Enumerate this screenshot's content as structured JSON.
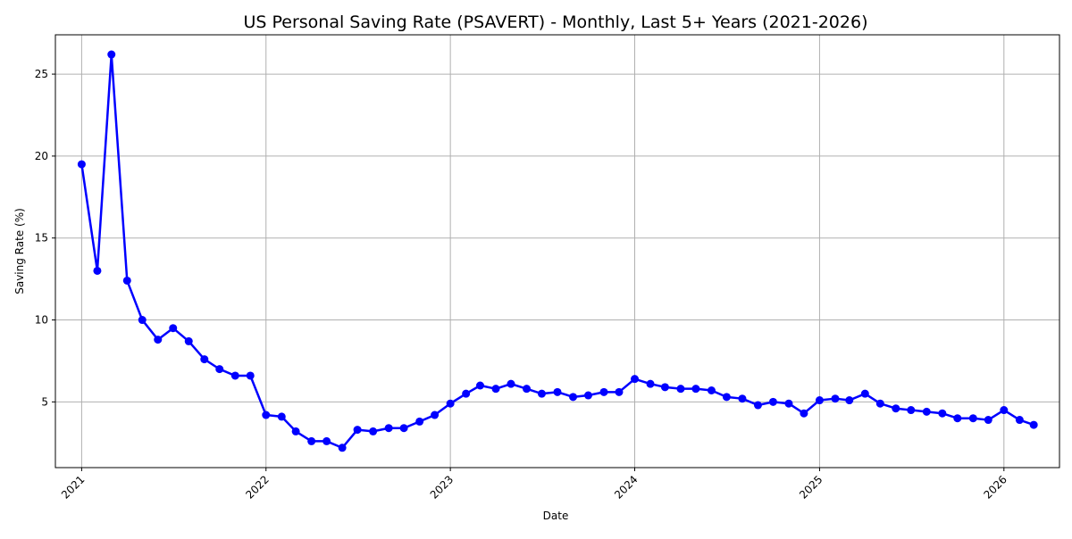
{
  "chart_data": {
    "type": "line",
    "title": "US Personal Saving Rate (PSAVERT) - Monthly, Last 5+ Years (2021-2026)",
    "xlabel": "Date",
    "ylabel": "Saving Rate (%)",
    "xlim": [
      "2020-11-10",
      "2026-04-21"
    ],
    "ylim": [
      0.99,
      27.4
    ],
    "grid": true,
    "x_ticks": [
      "2021",
      "2022",
      "2023",
      "2024",
      "2025",
      "2026"
    ],
    "y_ticks": [
      "5",
      "10",
      "15",
      "20",
      "25"
    ],
    "line_color": "#0000ff",
    "series": [
      {
        "x": [
          "2021-01-01",
          "2021-02-01",
          "2021-03-01",
          "2021-04-01",
          "2021-05-01",
          "2021-06-01",
          "2021-07-01",
          "2021-08-01",
          "2021-09-01",
          "2021-10-01",
          "2021-11-01",
          "2021-12-01",
          "2022-01-01",
          "2022-02-01",
          "2022-03-01",
          "2022-04-01",
          "2022-05-01",
          "2022-06-01",
          "2022-07-01",
          "2022-08-01",
          "2022-09-01",
          "2022-10-01",
          "2022-11-01",
          "2022-12-01",
          "2023-01-01",
          "2023-02-01",
          "2023-03-01",
          "2023-04-01",
          "2023-05-01",
          "2023-06-01",
          "2023-07-01",
          "2023-08-01",
          "2023-09-01",
          "2023-10-01",
          "2023-11-01",
          "2023-12-01",
          "2024-01-01",
          "2024-02-01",
          "2024-03-01",
          "2024-04-01",
          "2024-05-01",
          "2024-06-01",
          "2024-07-01",
          "2024-08-01",
          "2024-09-01",
          "2024-10-01",
          "2024-11-01",
          "2024-12-01",
          "2025-01-01",
          "2025-02-01",
          "2025-03-01",
          "2025-04-01",
          "2025-05-01",
          "2025-06-01",
          "2025-07-01",
          "2025-08-01",
          "2025-09-01",
          "2025-10-01",
          "2025-11-01",
          "2025-12-01",
          "2026-01-01",
          "2026-02-01",
          "2026-03-01"
        ],
        "values": [
          19.5,
          13.0,
          26.2,
          12.4,
          10.0,
          8.8,
          9.5,
          8.7,
          7.6,
          7.0,
          6.6,
          6.6,
          4.2,
          4.1,
          3.2,
          2.6,
          2.6,
          2.2,
          3.3,
          3.2,
          3.4,
          3.4,
          3.8,
          4.2,
          4.9,
          5.5,
          6.0,
          5.8,
          6.1,
          5.8,
          5.5,
          5.6,
          5.3,
          5.4,
          5.6,
          5.6,
          6.4,
          6.1,
          5.9,
          5.8,
          5.8,
          5.7,
          5.3,
          5.2,
          4.8,
          5.0,
          4.9,
          4.3,
          5.1,
          5.2,
          5.1,
          5.5,
          4.9,
          4.6,
          4.5,
          4.4,
          4.3,
          4.0,
          4.0,
          3.9,
          4.5,
          3.9,
          3.6
        ]
      }
    ]
  }
}
